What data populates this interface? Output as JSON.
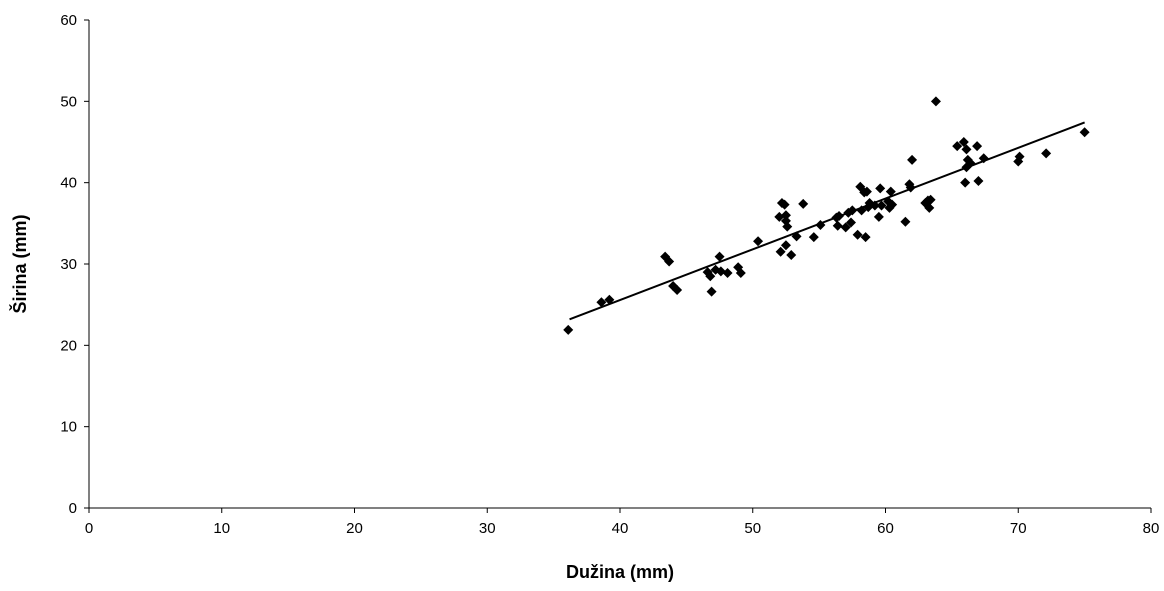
{
  "chart_data": {
    "type": "scatter",
    "xlabel": "Dužina (mm)",
    "ylabel": "Širina (mm)",
    "xlim": [
      0,
      80
    ],
    "ylim": [
      0,
      60
    ],
    "xticks": [
      0,
      10,
      20,
      30,
      40,
      50,
      60,
      70,
      80
    ],
    "yticks": [
      0,
      10,
      20,
      30,
      40,
      50,
      60
    ],
    "grid": false,
    "marker": "diamond",
    "marker_color": "#000000",
    "trendline": {
      "type": "linear",
      "x": [
        36.2,
        75.0
      ],
      "y": [
        23.2,
        47.4
      ]
    },
    "series": [
      {
        "points": [
          [
            36.1,
            21.9
          ],
          [
            38.6,
            25.3
          ],
          [
            39.2,
            25.6
          ],
          [
            43.4,
            30.9
          ],
          [
            43.7,
            30.3
          ],
          [
            44.0,
            27.3
          ],
          [
            44.3,
            26.8
          ],
          [
            46.6,
            29.0
          ],
          [
            46.8,
            28.5
          ],
          [
            46.9,
            26.6
          ],
          [
            47.2,
            29.3
          ],
          [
            47.5,
            30.9
          ],
          [
            47.6,
            29.1
          ],
          [
            48.1,
            28.9
          ],
          [
            48.9,
            29.6
          ],
          [
            49.1,
            28.9
          ],
          [
            50.4,
            32.8
          ],
          [
            52.0,
            35.8
          ],
          [
            52.1,
            31.5
          ],
          [
            52.2,
            37.5
          ],
          [
            52.4,
            37.3
          ],
          [
            52.5,
            32.3
          ],
          [
            52.5,
            36.0
          ],
          [
            52.5,
            35.3
          ],
          [
            52.6,
            34.6
          ],
          [
            52.9,
            31.1
          ],
          [
            53.3,
            33.4
          ],
          [
            53.8,
            37.4
          ],
          [
            54.6,
            33.3
          ],
          [
            55.1,
            34.8
          ],
          [
            56.3,
            35.7
          ],
          [
            56.4,
            34.7
          ],
          [
            56.5,
            35.9
          ],
          [
            57.0,
            34.5
          ],
          [
            57.2,
            36.3
          ],
          [
            57.4,
            35.1
          ],
          [
            57.5,
            36.6
          ],
          [
            57.9,
            33.6
          ],
          [
            58.1,
            39.5
          ],
          [
            58.2,
            36.6
          ],
          [
            58.4,
            38.8
          ],
          [
            58.5,
            33.3
          ],
          [
            58.6,
            38.9
          ],
          [
            58.7,
            37.0
          ],
          [
            58.8,
            37.5
          ],
          [
            59.2,
            37.2
          ],
          [
            59.5,
            35.8
          ],
          [
            59.6,
            39.3
          ],
          [
            59.7,
            37.2
          ],
          [
            60.2,
            37.7
          ],
          [
            60.3,
            36.9
          ],
          [
            60.4,
            38.9
          ],
          [
            60.5,
            37.3
          ],
          [
            61.5,
            35.2
          ],
          [
            61.8,
            39.8
          ],
          [
            61.9,
            39.4
          ],
          [
            62.0,
            42.8
          ],
          [
            63.0,
            37.5
          ],
          [
            63.2,
            37.8
          ],
          [
            63.3,
            36.9
          ],
          [
            63.4,
            37.9
          ],
          [
            63.8,
            50.0
          ],
          [
            65.4,
            44.5
          ],
          [
            65.9,
            45.0
          ],
          [
            66.0,
            40.0
          ],
          [
            66.1,
            41.9
          ],
          [
            66.1,
            44.1
          ],
          [
            66.2,
            42.8
          ],
          [
            66.4,
            42.4
          ],
          [
            66.9,
            44.5
          ],
          [
            67.0,
            40.2
          ],
          [
            67.4,
            43.0
          ],
          [
            70.0,
            42.6
          ],
          [
            70.1,
            43.2
          ],
          [
            72.1,
            43.6
          ],
          [
            75.0,
            46.2
          ]
        ]
      }
    ]
  }
}
